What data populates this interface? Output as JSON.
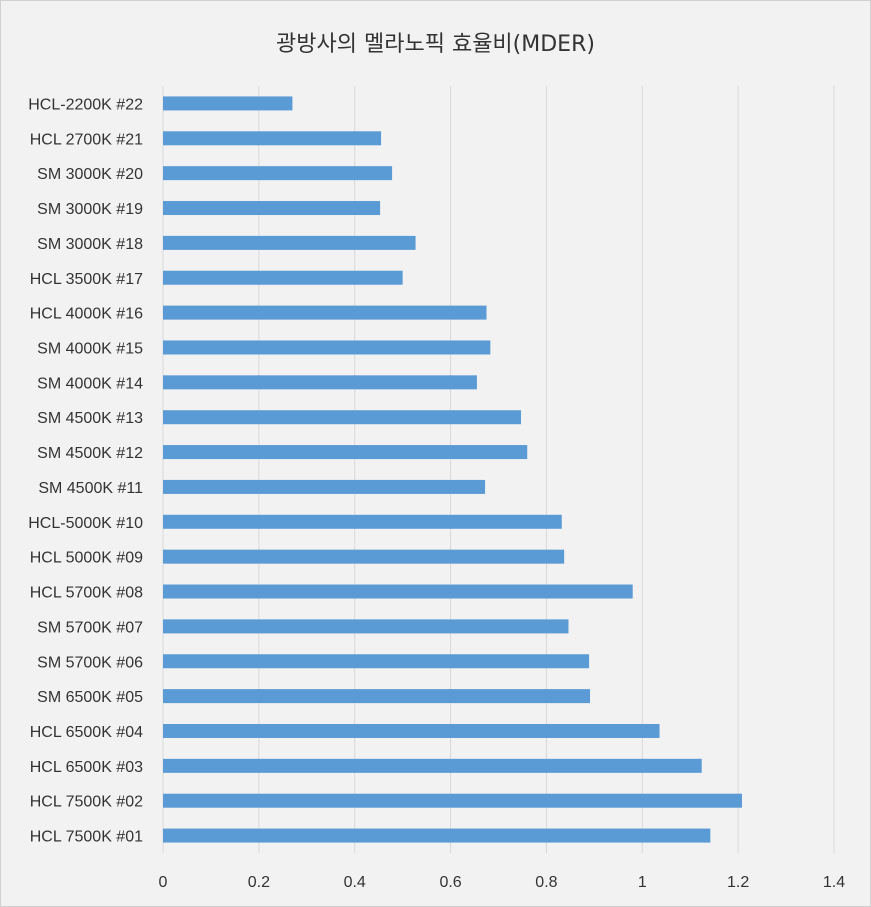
{
  "chart_data": {
    "type": "bar",
    "orientation": "horizontal",
    "title": "광방사의 멜라노픽 효율비(MDER)",
    "xlabel": "",
    "ylabel": "",
    "xlim": [
      0,
      1.4
    ],
    "x_ticks": [
      "0",
      "0.2",
      "0.4",
      "0.6",
      "0.8",
      "1",
      "1.2",
      "1.4"
    ],
    "grid": true,
    "legend": "none",
    "bar_color": "#5b9bd5",
    "categories": [
      "HCL-2200K #22",
      "HCL 2700K #21",
      "SM 3000K #20",
      "SM 3000K #19",
      "SM 3000K #18",
      "HCL 3500K #17",
      "HCL 4000K #16",
      "SM 4000K #15",
      "SM 4000K #14",
      "SM 4500K #13",
      "SM 4500K #12",
      "SM 4500K #11",
      "HCL-5000K #10",
      "HCL 5000K #09",
      "HCL 5700K #08",
      "SM 5700K #07",
      "SM 5700K #06",
      "SM 6500K #05",
      "HCL 6500K #04",
      "HCL 6500K #03",
      "HCL 7500K #02",
      "HCL 7500K #01"
    ],
    "values": [
      0.27,
      0.455,
      0.478,
      0.453,
      0.527,
      0.5,
      0.675,
      0.683,
      0.655,
      0.747,
      0.76,
      0.672,
      0.832,
      0.837,
      0.98,
      0.846,
      0.889,
      0.891,
      1.036,
      1.124,
      1.208,
      1.142
    ]
  }
}
